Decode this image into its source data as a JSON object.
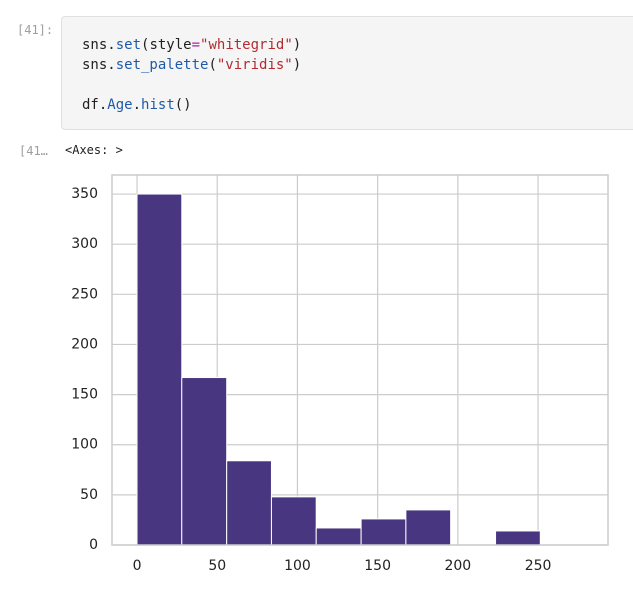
{
  "input_prompt": "[41]:",
  "code": {
    "lines": [
      [
        {
          "text": "sns.",
          "color": "#212121"
        },
        {
          "text": "set",
          "color": "#1e5aa8"
        },
        {
          "text": "(style",
          "color": "#212121"
        },
        {
          "text": "=",
          "color": "#a626a4"
        },
        {
          "text": "\"whitegrid\"",
          "color": "#b22b31"
        },
        {
          "text": ")",
          "color": "#212121"
        }
      ],
      [
        {
          "text": "sns.",
          "color": "#212121"
        },
        {
          "text": "set_palette",
          "color": "#1e5aa8"
        },
        {
          "text": "(",
          "color": "#212121"
        },
        {
          "text": "\"viridis\"",
          "color": "#b22b31"
        },
        {
          "text": ")",
          "color": "#212121"
        }
      ],
      [],
      [
        {
          "text": "df.",
          "color": "#212121"
        },
        {
          "text": "Age",
          "color": "#1e5aa8"
        },
        {
          "text": ".",
          "color": "#212121"
        },
        {
          "text": "hist",
          "color": "#1e5aa8"
        },
        {
          "text": "()",
          "color": "#212121"
        }
      ]
    ]
  },
  "output_prompt": "[41…",
  "output_text": "<Axes: >",
  "chart_data": {
    "type": "histogram",
    "bins": [
      0,
      27.9,
      55.9,
      83.8,
      111.7,
      139.7,
      167.6,
      195.5,
      223.5,
      251.4
    ],
    "counts": [
      350,
      167,
      84,
      48,
      17,
      26,
      35,
      0,
      14
    ],
    "color": "#483680",
    "xlim": [
      -15.6,
      293.6
    ],
    "ylim": [
      0,
      369
    ],
    "xticks": [
      0,
      50,
      100,
      150,
      200,
      250
    ],
    "yticks": [
      0,
      50,
      100,
      150,
      200,
      250,
      300,
      350
    ],
    "grid": true
  }
}
